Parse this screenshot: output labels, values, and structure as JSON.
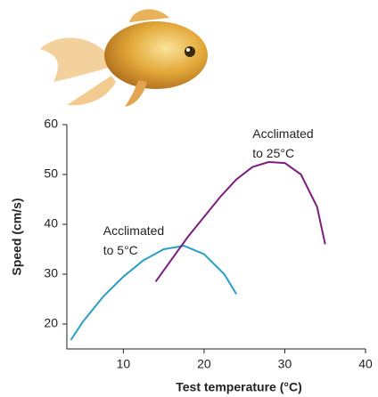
{
  "chart_data": {
    "type": "line",
    "y_label": "Speed (cm/s)",
    "x_label": "Test temperature (°C)",
    "xlim": [
      3,
      40
    ],
    "xticks": [
      10,
      20,
      30,
      40
    ],
    "ylim": [
      15,
      60
    ],
    "yticks": [
      20,
      30,
      40,
      50,
      60
    ],
    "series": [
      {
        "color": "#2a9ec6",
        "x": [
          3.5,
          5,
          7.5,
          10,
          12.5,
          15,
          17.5,
          20,
          22.5,
          24
        ],
        "values": [
          16.8,
          20.5,
          25.5,
          29.5,
          32.8,
          35,
          35.7,
          34,
          30,
          26
        ]
      },
      {
        "color": "#7a1f7d",
        "x": [
          14,
          16,
          18,
          20,
          22,
          24,
          26,
          28,
          30,
          32,
          34,
          35
        ],
        "values": [
          28.5,
          33,
          37.5,
          41.5,
          45.5,
          49,
          51.5,
          52.5,
          52.3,
          50,
          43.5,
          36
        ]
      }
    ],
    "annotations": [
      {
        "lines": [
          "Acclimated",
          "to 5°C"
        ],
        "x": 7.5,
        "y": 38.5
      },
      {
        "lines": [
          "Acclimated",
          "to 25°C"
        ],
        "x": 26,
        "y": 58
      }
    ]
  }
}
